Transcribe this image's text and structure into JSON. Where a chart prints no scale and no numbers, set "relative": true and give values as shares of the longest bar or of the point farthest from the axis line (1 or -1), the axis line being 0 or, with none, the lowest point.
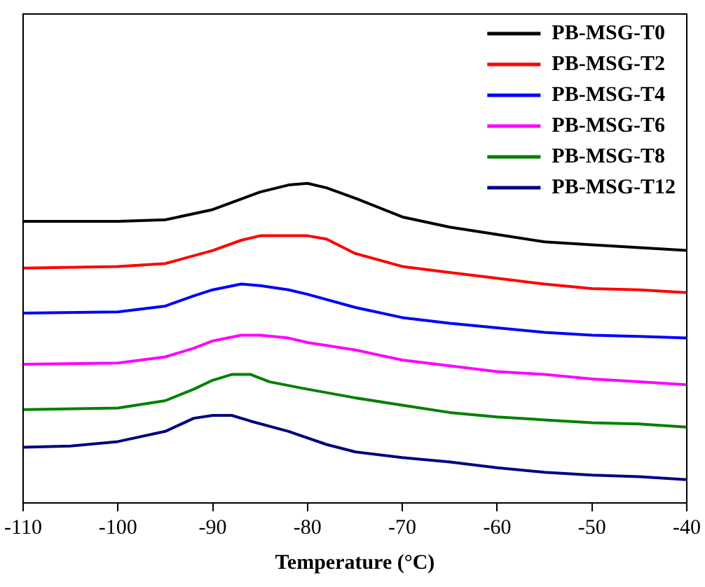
{
  "chart_data": {
    "type": "line",
    "xlabel": "Temperature (°C)",
    "relative": true,
    "xlim": [
      -110,
      -40
    ],
    "xticks": [
      -110,
      -100,
      -90,
      -80,
      -70,
      -60,
      -50,
      -40
    ],
    "grid": false,
    "legend": "top right",
    "marker": "none",
    "line_style": "solid",
    "series": [
      {
        "name": "PB-MSG-T0",
        "color": "#000000",
        "x": [
          -110,
          -100,
          -95,
          -90,
          -85,
          -82,
          -80,
          -78,
          -75,
          -70,
          -65,
          -60,
          -55,
          -50,
          -45,
          -40
        ],
        "values": [
          0.881,
          0.881,
          0.886,
          0.918,
          0.973,
          0.995,
          1,
          0.986,
          0.954,
          0.895,
          0.863,
          0.84,
          0.817,
          0.808,
          0.799,
          0.79
        ]
      },
      {
        "name": "PB-MSG-T2",
        "color": "#ff0000",
        "x": [
          -110,
          -100,
          -95,
          -90,
          -87,
          -85,
          -80,
          -78,
          -75,
          -70,
          -65,
          -60,
          -55,
          -50,
          -45,
          -40
        ],
        "values": [
          0.735,
          0.74,
          0.749,
          0.79,
          0.822,
          0.836,
          0.836,
          0.826,
          0.781,
          0.74,
          0.721,
          0.703,
          0.685,
          0.671,
          0.667,
          0.658
        ]
      },
      {
        "name": "PB-MSG-T4",
        "color": "#0000ff",
        "x": [
          -110,
          -100,
          -95,
          -92,
          -90,
          -87,
          -85,
          -82,
          -80,
          -75,
          -70,
          -65,
          -60,
          -55,
          -50,
          -45,
          -40
        ],
        "values": [
          0.594,
          0.598,
          0.616,
          0.648,
          0.667,
          0.685,
          0.68,
          0.667,
          0.653,
          0.612,
          0.58,
          0.562,
          0.548,
          0.534,
          0.525,
          0.521,
          0.516
        ]
      },
      {
        "name": "PB-MSG-T6",
        "color": "#ff00ff",
        "x": [
          -110,
          -100,
          -95,
          -92,
          -90,
          -87,
          -85,
          -82,
          -80,
          -75,
          -70,
          -65,
          -60,
          -55,
          -50,
          -45,
          -40
        ],
        "values": [
          0.434,
          0.438,
          0.457,
          0.484,
          0.507,
          0.525,
          0.525,
          0.516,
          0.502,
          0.479,
          0.447,
          0.429,
          0.411,
          0.402,
          0.388,
          0.379,
          0.37
        ]
      },
      {
        "name": "PB-MSG-T8",
        "color": "#008000",
        "x": [
          -110,
          -100,
          -95,
          -92,
          -90,
          -88,
          -86,
          -84,
          -80,
          -75,
          -70,
          -65,
          -60,
          -55,
          -50,
          -45,
          -40
        ],
        "values": [
          0.292,
          0.297,
          0.32,
          0.356,
          0.384,
          0.402,
          0.402,
          0.379,
          0.356,
          0.329,
          0.306,
          0.283,
          0.269,
          0.26,
          0.251,
          0.247,
          0.237
        ]
      },
      {
        "name": "PB-MSG-T12",
        "color": "#000080",
        "x": [
          -110,
          -105,
          -100,
          -95,
          -92,
          -90,
          -88,
          -86,
          -82,
          -78,
          -75,
          -70,
          -65,
          -60,
          -55,
          -50,
          -45,
          -40
        ],
        "values": [
          0.174,
          0.178,
          0.192,
          0.224,
          0.265,
          0.274,
          0.274,
          0.256,
          0.224,
          0.183,
          0.16,
          0.142,
          0.128,
          0.11,
          0.096,
          0.087,
          0.082,
          0.073
        ]
      }
    ]
  }
}
